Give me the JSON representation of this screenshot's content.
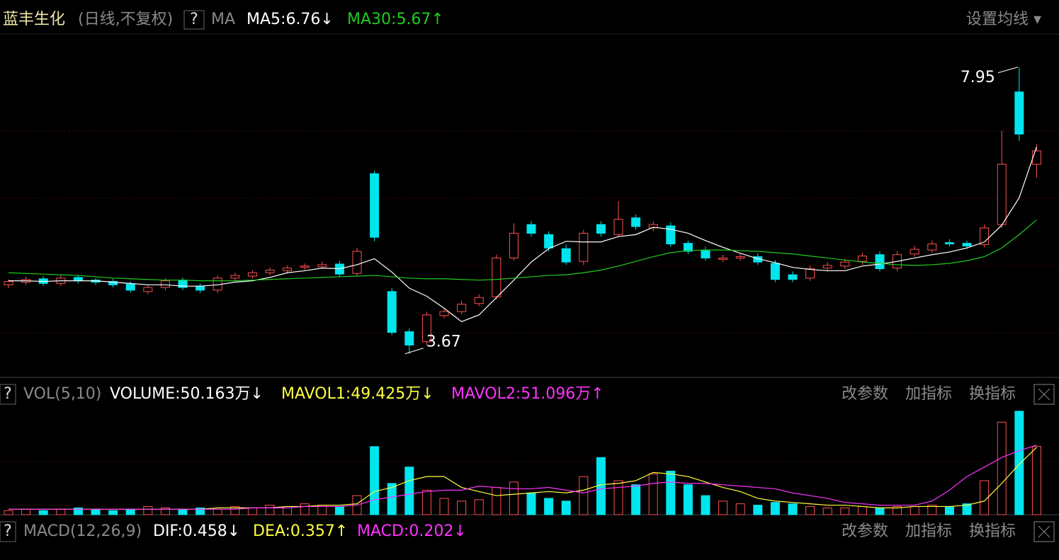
{
  "chart_data": [
    {
      "type": "candlestick",
      "title": "蓝丰生化",
      "subtitle": "(日线,不复权)",
      "indicator": "MA",
      "up_color": "#ff5050",
      "down_color": "#00e5ee",
      "open": [
        4.7,
        4.74,
        4.79,
        4.72,
        4.81,
        4.77,
        4.75,
        4.71,
        4.6,
        4.66,
        4.77,
        4.68,
        4.62,
        4.8,
        4.83,
        4.88,
        4.91,
        4.96,
        4.97,
        5.01,
        4.87,
        6.36,
        4.6,
        4.0,
        3.85,
        4.24,
        4.3,
        4.42,
        4.52,
        5.1,
        5.6,
        5.45,
        5.24,
        5.05,
        5.6,
        5.45,
        5.7,
        5.55,
        5.58,
        5.32,
        5.22,
        5.08,
        5.1,
        5.12,
        5.02,
        4.85,
        4.8,
        4.95,
        4.98,
        5.05,
        5.15,
        4.95,
        5.16,
        5.22,
        5.33,
        5.32,
        5.3,
        5.6,
        7.58,
        6.5
      ],
      "high": [
        4.78,
        4.82,
        4.83,
        4.84,
        4.85,
        4.8,
        4.79,
        4.75,
        4.7,
        4.8,
        4.81,
        4.72,
        4.84,
        4.88,
        4.92,
        4.96,
        4.99,
        5.02,
        5.05,
        5.06,
        5.25,
        6.4,
        4.65,
        4.05,
        4.3,
        4.35,
        4.46,
        4.56,
        5.15,
        5.62,
        5.65,
        5.5,
        5.3,
        5.52,
        5.65,
        5.95,
        5.75,
        5.65,
        5.63,
        5.36,
        5.27,
        5.15,
        5.17,
        5.17,
        5.07,
        4.9,
        4.99,
        5.04,
        5.09,
        5.18,
        5.2,
        5.2,
        5.28,
        5.36,
        5.38,
        5.36,
        5.6,
        7.0,
        7.95,
        6.8
      ],
      "low": [
        4.65,
        4.7,
        4.68,
        4.68,
        4.72,
        4.7,
        4.66,
        4.58,
        4.56,
        4.62,
        4.62,
        4.58,
        4.58,
        4.76,
        4.79,
        4.84,
        4.87,
        4.92,
        4.94,
        4.82,
        4.83,
        5.35,
        3.95,
        3.67,
        3.8,
        4.2,
        4.26,
        4.38,
        4.48,
        5.06,
        5.42,
        5.2,
        5.0,
        5.0,
        5.42,
        5.42,
        5.52,
        5.5,
        5.27,
        5.16,
        5.06,
        5.04,
        5.06,
        5.0,
        4.74,
        4.74,
        4.76,
        4.9,
        4.94,
        5.0,
        4.9,
        4.9,
        5.12,
        5.18,
        5.27,
        5.24,
        5.26,
        5.55,
        6.85,
        6.3
      ],
      "close": [
        4.75,
        4.78,
        4.72,
        4.8,
        4.76,
        4.74,
        4.7,
        4.62,
        4.66,
        4.76,
        4.66,
        4.62,
        4.8,
        4.84,
        4.88,
        4.92,
        4.95,
        4.98,
        5.0,
        4.86,
        5.2,
        5.41,
        3.99,
        3.8,
        4.25,
        4.3,
        4.41,
        4.51,
        5.1,
        5.47,
        5.47,
        5.25,
        5.04,
        5.47,
        5.47,
        5.68,
        5.57,
        5.6,
        5.31,
        5.2,
        5.1,
        5.1,
        5.12,
        5.04,
        4.78,
        4.78,
        4.94,
        4.99,
        5.04,
        5.13,
        4.94,
        5.15,
        5.23,
        5.31,
        5.31,
        5.28,
        5.55,
        6.5,
        6.95,
        6.7
      ],
      "series": [
        {
          "name": "MA5:6.76↓",
          "color": "#ffffff",
          "values": [
            4.76,
            4.76,
            4.75,
            4.76,
            4.76,
            4.76,
            4.74,
            4.72,
            4.7,
            4.7,
            4.68,
            4.68,
            4.7,
            4.74,
            4.76,
            4.81,
            4.88,
            4.91,
            4.95,
            4.94,
            5.0,
            5.09,
            4.89,
            4.65,
            4.53,
            4.35,
            4.15,
            4.25,
            4.51,
            4.77,
            5.04,
            5.24,
            5.35,
            5.34,
            5.34,
            5.42,
            5.45,
            5.56,
            5.53,
            5.47,
            5.36,
            5.26,
            5.17,
            5.09,
            5.03,
            4.96,
            4.93,
            4.91,
            4.91,
            4.98,
            5.01,
            5.05,
            5.1,
            5.15,
            5.19,
            5.25,
            5.34,
            5.59,
            6.0,
            6.76
          ]
        },
        {
          "name": "MA30:5.67↑",
          "color": "#1fcc1f",
          "values": [
            4.88,
            4.87,
            4.86,
            4.85,
            4.84,
            4.82,
            4.8,
            4.79,
            4.78,
            4.77,
            4.77,
            4.76,
            4.76,
            4.76,
            4.77,
            4.78,
            4.79,
            4.8,
            4.81,
            4.82,
            4.83,
            4.84,
            4.82,
            4.8,
            4.79,
            4.79,
            4.78,
            4.77,
            4.78,
            4.8,
            4.82,
            4.84,
            4.85,
            4.88,
            4.92,
            4.98,
            5.05,
            5.12,
            5.18,
            5.21,
            5.22,
            5.22,
            5.21,
            5.2,
            5.18,
            5.16,
            5.13,
            5.1,
            5.07,
            5.04,
            5.02,
            5.0,
            4.99,
            5.0,
            5.02,
            5.06,
            5.12,
            5.25,
            5.45,
            5.67
          ]
        }
      ],
      "annotations": [
        "7.95",
        "3.67"
      ],
      "ylim": [
        3.35,
        8.16
      ]
    },
    {
      "type": "bar",
      "title": "VOL(5,10)",
      "value_name": "VOLUME:50.163万↓",
      "values": [
        3,
        4,
        3,
        4,
        5,
        4,
        3,
        4,
        6,
        5,
        4,
        5,
        4,
        6,
        5,
        7,
        6,
        8,
        7,
        6,
        14,
        50,
        23,
        35,
        18,
        12,
        10,
        11,
        20,
        24,
        16,
        12,
        10,
        28,
        42,
        25,
        22,
        30,
        32,
        22,
        14,
        10,
        8,
        7,
        9,
        8,
        6,
        5,
        5,
        6,
        5,
        6,
        6,
        7,
        6,
        8,
        25,
        68,
        76,
        50.163
      ],
      "series": [
        {
          "name": "MAVOL1:49.425万↓",
          "color": "#ffff40",
          "values": [
            4,
            4,
            4,
            4,
            4,
            4,
            4,
            4,
            4,
            4,
            4,
            4,
            5,
            5,
            5,
            5,
            6,
            6,
            7,
            7,
            8,
            17,
            20,
            25,
            28,
            28,
            20,
            17,
            14,
            15,
            16,
            17,
            16,
            18,
            22,
            23,
            25,
            31,
            30,
            28,
            24,
            20,
            17,
            12,
            10,
            9,
            8,
            7,
            7,
            6,
            5,
            5,
            6,
            6,
            6,
            7,
            10,
            23,
            37,
            49.425
          ]
        },
        {
          "name": "MAVOL2:51.096万↑",
          "color": "#ff33ff",
          "values": [
            4,
            4,
            4,
            4,
            4,
            4,
            4,
            4,
            4,
            4,
            4,
            4,
            4,
            4,
            5,
            5,
            5,
            6,
            6,
            6,
            7,
            11,
            13,
            15,
            17,
            18,
            18,
            21,
            20,
            19,
            19,
            20,
            18,
            16,
            19,
            20,
            21,
            23,
            24,
            23,
            23,
            22,
            21,
            20,
            19,
            16,
            14,
            12,
            9,
            8,
            7,
            7,
            7,
            10,
            18,
            28,
            35,
            42,
            47,
            51.096
          ]
        }
      ],
      "ylim": [
        0,
        78
      ]
    }
  ],
  "macd_panel": {
    "title": "MACD(12,26,9)",
    "items": [
      "DIF:0.458↓",
      "DEA:0.357↑",
      "MACD:0.202↓"
    ]
  },
  "controls": {
    "help": "?",
    "settings": "设置均线 ▾",
    "params": "改参数",
    "add": "加指标",
    "swap": "换指标"
  }
}
